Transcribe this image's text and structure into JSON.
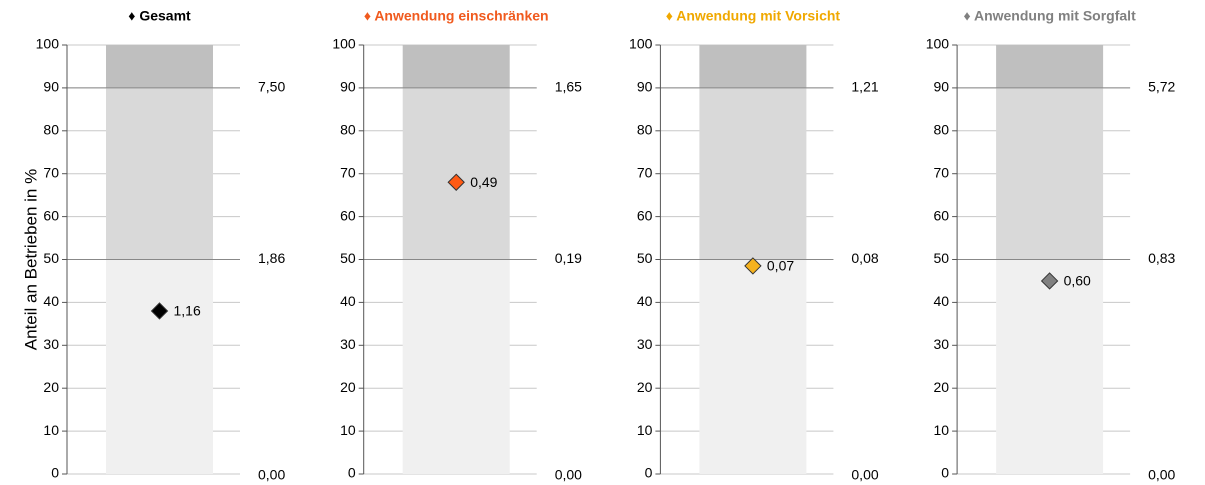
{
  "chart_data": [
    {
      "type": "bar",
      "title": "♦ Gesamt",
      "title_color": "#000000",
      "ylabel": "Anteil an Betrieben in %",
      "ylim": [
        0,
        100
      ],
      "yticks": [
        0,
        10,
        20,
        30,
        40,
        50,
        60,
        70,
        80,
        90,
        100
      ],
      "values": [
        50,
        40,
        10
      ],
      "colors": [
        "#f0f0f0",
        "#d9d9d9",
        "#bfbfbf"
      ],
      "threshold_labels": [
        "0,00",
        "1,86",
        "7,50"
      ],
      "point": {
        "y": 38,
        "label": "1,16",
        "color": "#000000"
      }
    },
    {
      "type": "bar",
      "title": "♦ Anwendung einschränken",
      "title_color": "#f05a1e",
      "ylim": [
        0,
        100
      ],
      "yticks": [
        0,
        10,
        20,
        30,
        40,
        50,
        60,
        70,
        80,
        90,
        100
      ],
      "values": [
        50,
        40,
        10
      ],
      "colors": [
        "#f0f0f0",
        "#d9d9d9",
        "#bfbfbf"
      ],
      "threshold_labels": [
        "0,00",
        "0,19",
        "1,65"
      ],
      "point": {
        "y": 68,
        "label": "0,49",
        "color": "#ff5a14"
      }
    },
    {
      "type": "bar",
      "title": "♦ Anwendung mit Vorsicht",
      "title_color": "#f0a800",
      "ylim": [
        0,
        100
      ],
      "yticks": [
        0,
        10,
        20,
        30,
        40,
        50,
        60,
        70,
        80,
        90,
        100
      ],
      "values": [
        50,
        40,
        10
      ],
      "colors": [
        "#f0f0f0",
        "#d9d9d9",
        "#bfbfbf"
      ],
      "threshold_labels": [
        "0,00",
        "0,08",
        "1,21"
      ],
      "point": {
        "y": 48.5,
        "label": "0,07",
        "color": "#f5b21e"
      }
    },
    {
      "type": "bar",
      "title": "♦ Anwendung mit Sorgfalt",
      "title_color": "#808080",
      "ylim": [
        0,
        100
      ],
      "yticks": [
        0,
        10,
        20,
        30,
        40,
        50,
        60,
        70,
        80,
        90,
        100
      ],
      "values": [
        50,
        40,
        10
      ],
      "colors": [
        "#f0f0f0",
        "#d9d9d9",
        "#bfbfbf"
      ],
      "threshold_labels": [
        "0,00",
        "0,83",
        "5,72"
      ],
      "point": {
        "y": 45,
        "label": "0,60",
        "color": "#808080"
      }
    }
  ]
}
